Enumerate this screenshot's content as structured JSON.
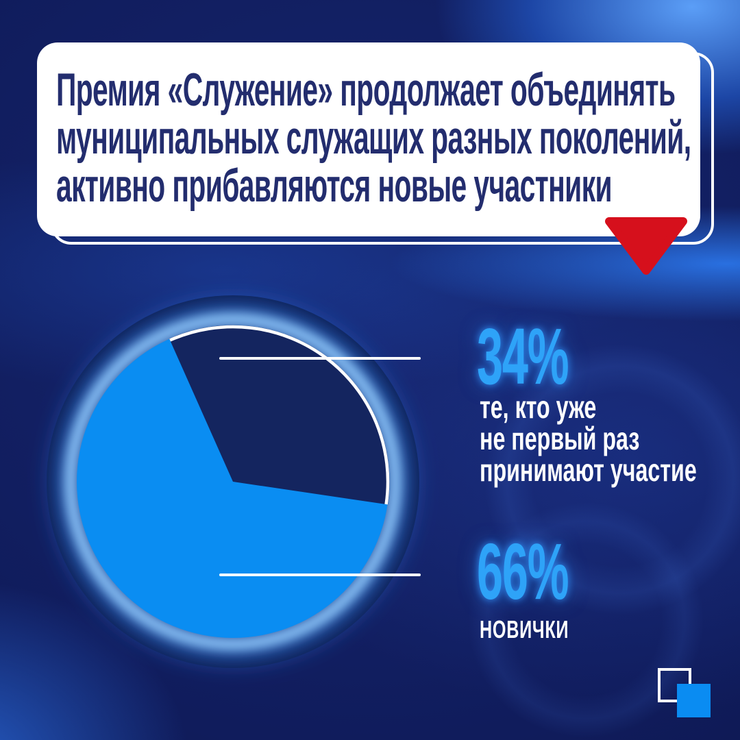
{
  "header": {
    "lines": [
      "Премия «Служение» продолжает объединять",
      "муниципальных служащих разных поколений,",
      "активно прибавляются новые участники"
    ]
  },
  "chart_data": {
    "type": "pie",
    "slices": [
      {
        "label": "те, кто уже не первый раз принимают участие",
        "value": 34,
        "unit": "%",
        "color": "#14255f",
        "outline": "white arc on outer edge"
      },
      {
        "label": "новички",
        "value": 66,
        "unit": "%",
        "color": "#0a8df2"
      }
    ],
    "start_angle_deg": -24,
    "direction": "clockwise",
    "labels_shown_as": "percent callouts with white leader lines on the right",
    "legend_position": "right",
    "title": ""
  },
  "callout_34": {
    "percent": "34%",
    "desc_lines": [
      "те, кто уже",
      "не первый раз",
      "принимают участие"
    ]
  },
  "callout_66": {
    "percent": "66%",
    "desc": "новички"
  },
  "colors": {
    "background_navy": "#101c5c",
    "card_background": "#ffffff",
    "headline_text": "#232d6e",
    "percent_text": "#2ea3f8",
    "bright_slice_blue": "#0a8df2",
    "dark_slice_navy": "#14255f",
    "pointer_red": "#d6101c",
    "leader_line_white": "#ffffff",
    "logo_blue": "#0a8cf2",
    "glow_blue": "#7ec6ff"
  },
  "icons": {
    "pointer": "triangle-down-icon",
    "logo": "overlapping-squares-logo"
  }
}
